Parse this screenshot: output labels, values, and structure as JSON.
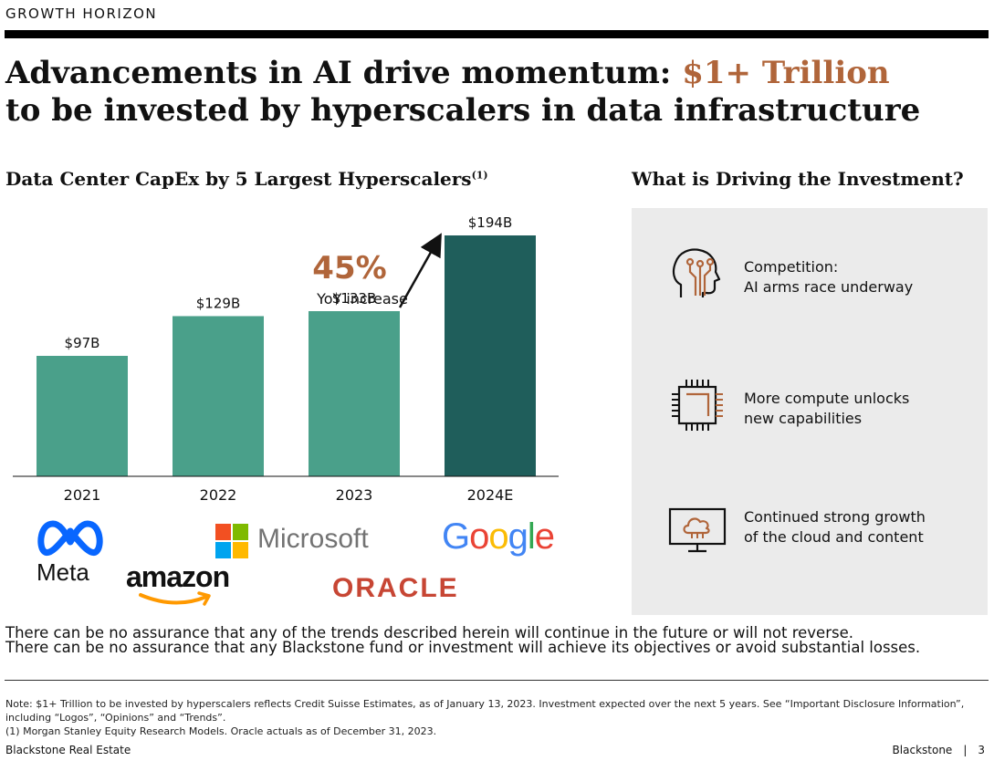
{
  "header": {
    "section_label": "GROWTH HORIZON",
    "headline_part1": "Advancements in AI drive momentum: ",
    "headline_accent": "$1+ Trillion",
    "headline_part2": "to be invested by hyperscalers in data infrastructure"
  },
  "chart_section": {
    "title": "Data Center CapEx by 5 Largest Hyperscalers",
    "footnote_marker": "(1)"
  },
  "chart_data": {
    "type": "bar",
    "title": "Data Center CapEx by 5 Largest Hyperscalers",
    "categories": [
      "2021",
      "2022",
      "2023",
      "2024E"
    ],
    "values": [
      97,
      129,
      133,
      194
    ],
    "data_labels": [
      "$97B",
      "$129B",
      "$133B",
      "$194B"
    ],
    "unit": "$B",
    "bar_colors": [
      "#4aa08a",
      "#4aa08a",
      "#4aa08a",
      "#1f5e5b"
    ],
    "ylim": [
      0,
      194
    ],
    "annotation": {
      "value": "45%",
      "text": "YoY increase",
      "color": "#b0653a",
      "from": "2023",
      "to": "2024E"
    },
    "grid": false,
    "legend": "none"
  },
  "logos": {
    "meta": "Meta",
    "microsoft": "Microsoft",
    "amazon": "amazon",
    "google": "Google",
    "oracle": "ORACLE"
  },
  "drivers": {
    "title": "What is Driving the Investment?",
    "items": [
      {
        "icon": "ai-head-icon",
        "line1": "Competition:",
        "line2": "AI arms race underway"
      },
      {
        "icon": "microchip-icon",
        "line1": "More compute unlocks",
        "line2": "new capabilities"
      },
      {
        "icon": "cloud-monitor-icon",
        "line1": "Continued strong growth",
        "line2": "of the cloud and content"
      }
    ],
    "accent_color": "#b0653a",
    "panel_color": "#ebebeb"
  },
  "disclaimer": {
    "line1": "There can be no assurance that any of the trends described herein will continue in the future or will not reverse.",
    "line2": "There can be no assurance that any Blackstone fund or investment will achieve its objectives or avoid substantial losses."
  },
  "notes": {
    "note": "Note: $1+ Trillion to be invested by hyperscalers reflects Credit Suisse Estimates, as of January 13, 2023. Investment expected over the next 5 years. See “Important Disclosure Information”, including “Logos”, “Opinions” and “Trends”.",
    "footnote1": "(1)   Morgan Stanley Equity Research Models. Oracle actuals as of December 31, 2023."
  },
  "footer": {
    "left": "Blackstone Real Estate",
    "brand": "Blackstone",
    "separator": "|",
    "page_number": "3"
  }
}
